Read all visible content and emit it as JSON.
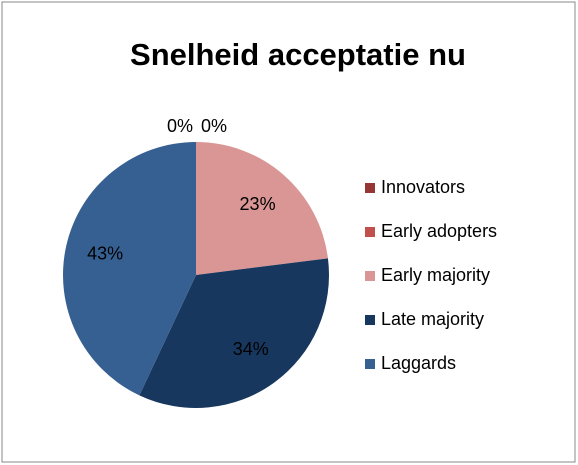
{
  "chart_data": {
    "type": "pie",
    "title": "Snelheid acceptatie nu",
    "categories": [
      "Innovators",
      "Early adopters",
      "Early majority",
      "Late majority",
      "Laggards"
    ],
    "values": [
      0,
      0,
      23,
      34,
      43
    ],
    "value_labels": [
      "0%",
      "0%",
      "23%",
      "34%",
      "43%"
    ],
    "colors": [
      "#953735",
      "#c0504d",
      "#d99694",
      "#17375e",
      "#376092"
    ],
    "legend": "right"
  }
}
